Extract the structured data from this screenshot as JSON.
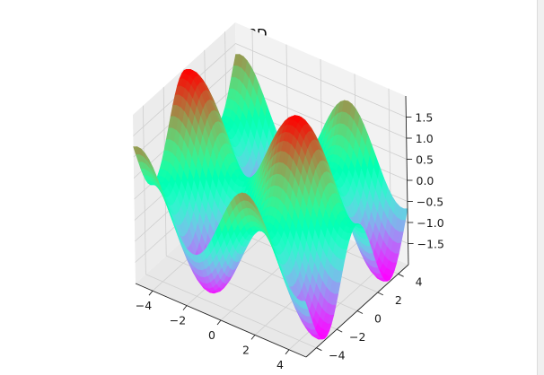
{
  "chart_data": {
    "type": "surface3d",
    "title": "3D",
    "function": "sin(x) + cos(y)",
    "colormap": "rainbow",
    "x_range": [
      -5,
      5
    ],
    "y_range": [
      -5,
      5
    ],
    "z_range": [
      -2,
      2
    ],
    "x_ticks": [
      "−4",
      "−2",
      "0",
      "2",
      "4"
    ],
    "y_ticks": [
      "−4",
      "−2",
      "0",
      "2",
      "4"
    ],
    "z_ticks": [
      "−1.5",
      "−1.0",
      "−0.5",
      "0.0",
      "0.5",
      "1.0",
      "1.5"
    ],
    "z_tick_values": [
      -1.5,
      -1.0,
      -0.5,
      0.0,
      0.5,
      1.0,
      1.5
    ],
    "grid": true,
    "colors": {
      "pane_back": "#f2f2f2",
      "pane_side": "#ececec",
      "pane_floor": "#e8e8e8",
      "grid": "#cfcfcf"
    }
  }
}
